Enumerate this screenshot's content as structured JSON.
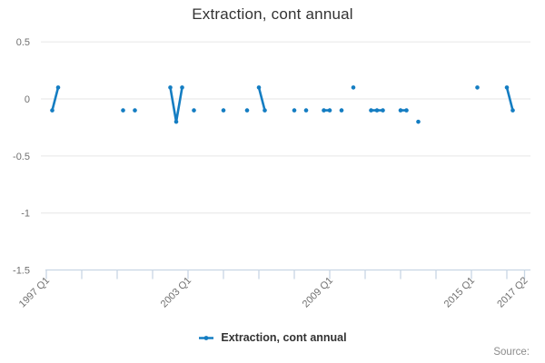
{
  "title": "Extraction, cont annual",
  "legend": {
    "items": [
      {
        "label": "Extraction, cont annual",
        "marker": "line-dot-icon"
      }
    ]
  },
  "footer": {
    "source": "Source:"
  },
  "colors": {
    "series": "#147dc2",
    "grid": "#e6e6e6",
    "axis": "#c8d6e4",
    "tick_label": "#707070",
    "title_text": "#333333",
    "legend_text": "#333333",
    "source_text": "#8b8b8b",
    "background": "#ffffff"
  },
  "chart_data": {
    "type": "line",
    "title": "Extraction, cont annual",
    "xlabel": "",
    "ylabel": "",
    "ylim": [
      -1.5,
      0.5
    ],
    "y_ticks": [
      0.5,
      0,
      -0.5,
      -1,
      -1.5
    ],
    "x_range": [
      "1997 Q1",
      "2017 Q2"
    ],
    "x_major_ticks": [
      "1997 Q1",
      "2003 Q1",
      "2009 Q1",
      "2015 Q1",
      "2017 Q2"
    ],
    "x_minor_tick_every_quarters": 6,
    "grid": "horizontal",
    "legend_position": "bottom-center",
    "series": [
      {
        "name": "Extraction, cont annual",
        "segments": [
          [
            [
              "1997 Q2",
              -0.1
            ],
            [
              "1997 Q3",
              0.1
            ]
          ],
          [
            [
              "2000 Q2",
              -0.1
            ]
          ],
          [
            [
              "2000 Q4",
              -0.1
            ]
          ],
          [
            [
              "2002 Q2",
              0.1
            ],
            [
              "2002 Q3",
              -0.2
            ],
            [
              "2002 Q4",
              0.1
            ]
          ],
          [
            [
              "2003 Q2",
              -0.1
            ]
          ],
          [
            [
              "2004 Q3",
              -0.1
            ]
          ],
          [
            [
              "2005 Q3",
              -0.1
            ]
          ],
          [
            [
              "2006 Q1",
              0.1
            ],
            [
              "2006 Q2",
              -0.1
            ]
          ],
          [
            [
              "2007 Q3",
              -0.1
            ]
          ],
          [
            [
              "2008 Q1",
              -0.1
            ]
          ],
          [
            [
              "2008 Q4",
              -0.1
            ],
            [
              "2009 Q1",
              -0.1
            ]
          ],
          [
            [
              "2009 Q3",
              -0.1
            ]
          ],
          [
            [
              "2010 Q1",
              0.1
            ]
          ],
          [
            [
              "2010 Q4",
              -0.1
            ],
            [
              "2011 Q1",
              -0.1
            ],
            [
              "2011 Q2",
              -0.1
            ]
          ],
          [
            [
              "2012 Q1",
              -0.1
            ],
            [
              "2012 Q2",
              -0.1
            ]
          ],
          [
            [
              "2012 Q4",
              -0.2
            ]
          ],
          [
            [
              "2015 Q2",
              0.1
            ]
          ],
          [
            [
              "2016 Q3",
              0.1
            ],
            [
              "2016 Q4",
              -0.1
            ]
          ]
        ]
      }
    ]
  }
}
